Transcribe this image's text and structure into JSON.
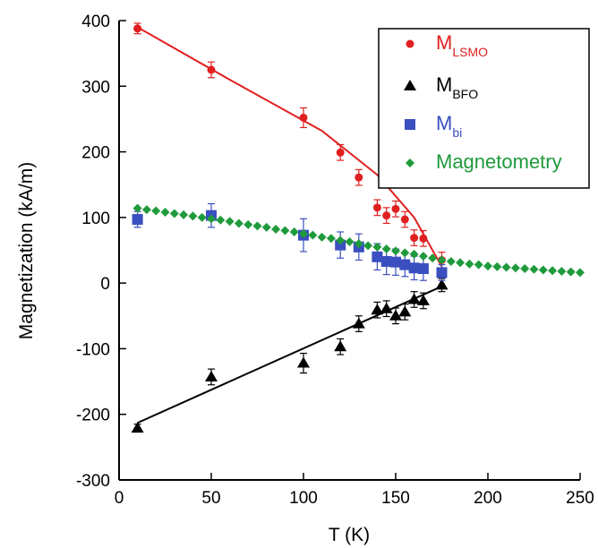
{
  "chart_data": {
    "type": "scatter",
    "xlabel": "T (K)",
    "ylabel": "Magnetization (kA/m)",
    "xlim": [
      0,
      250
    ],
    "ylim": [
      -300,
      400
    ],
    "xticks": [
      0,
      50,
      100,
      150,
      200,
      250
    ],
    "yticks": [
      -300,
      -200,
      -100,
      0,
      100,
      200,
      300,
      400
    ],
    "grid": false,
    "legend_position": "top-right",
    "series": [
      {
        "key": "lsmo",
        "name": "M",
        "subscript": "LSMO",
        "marker": "circle",
        "color": "#e02020",
        "x": [
          10,
          50,
          100,
          120,
          130,
          140,
          145,
          150,
          155,
          160,
          165,
          175
        ],
        "y": [
          388,
          325,
          252,
          199,
          161,
          115,
          103,
          113,
          97,
          69,
          68,
          35
        ],
        "err": [
          8,
          12,
          15,
          12,
          12,
          12,
          12,
          12,
          12,
          12,
          12,
          12
        ]
      },
      {
        "key": "bfo",
        "name": "M",
        "subscript": "BFO",
        "marker": "triangle",
        "color": "#000000",
        "x": [
          10,
          50,
          100,
          120,
          130,
          140,
          145,
          150,
          155,
          160,
          165,
          175
        ],
        "y": [
          -221,
          -143,
          -122,
          -97,
          -62,
          -41,
          -39,
          -50,
          -44,
          -25,
          -27,
          -3
        ],
        "err": [
          6,
          12,
          15,
          12,
          12,
          12,
          12,
          12,
          12,
          12,
          12,
          10
        ]
      },
      {
        "key": "bi",
        "name": "M",
        "subscript": "bi",
        "marker": "square",
        "color": "#3a4fc0",
        "x": [
          10,
          50,
          100,
          120,
          130,
          140,
          145,
          150,
          155,
          160,
          165,
          175
        ],
        "y": [
          97,
          103,
          73,
          58,
          55,
          40,
          33,
          32,
          28,
          23,
          22,
          16
        ],
        "err": [
          12,
          18,
          25,
          20,
          20,
          20,
          20,
          20,
          18,
          18,
          18,
          12
        ]
      },
      {
        "key": "magnetometry",
        "name": "Magnetometry",
        "subscript": "",
        "marker": "diamond",
        "color": "#1f9a3c",
        "x": [
          10,
          15,
          20,
          25,
          30,
          35,
          40,
          45,
          50,
          55,
          60,
          65,
          70,
          75,
          80,
          85,
          90,
          95,
          100,
          105,
          110,
          115,
          120,
          125,
          130,
          135,
          140,
          145,
          150,
          155,
          160,
          165,
          170,
          175,
          180,
          185,
          190,
          195,
          200,
          205,
          210,
          215,
          220,
          225,
          230,
          235,
          240,
          245,
          250
        ],
        "y": [
          114,
          112,
          110,
          108,
          106,
          104,
          102,
          100,
          98,
          96,
          94,
          91,
          89,
          87,
          85,
          82,
          80,
          78,
          75,
          73,
          70,
          68,
          65,
          63,
          60,
          57,
          55,
          52,
          49,
          46,
          44,
          41,
          38,
          35,
          33,
          31,
          29,
          28,
          26,
          25,
          24,
          23,
          22,
          21,
          20,
          19,
          18,
          17,
          16
        ]
      }
    ],
    "fits": [
      {
        "key": "lsmo-fit",
        "color": "#e02020",
        "x": [
          10,
          60,
          110,
          140,
          160,
          175
        ],
        "y": [
          390,
          310,
          232,
          165,
          100,
          25
        ]
      },
      {
        "key": "bfo-fit",
        "color": "#000000",
        "x": [
          10,
          175
        ],
        "y": [
          -213,
          -5
        ]
      }
    ]
  }
}
